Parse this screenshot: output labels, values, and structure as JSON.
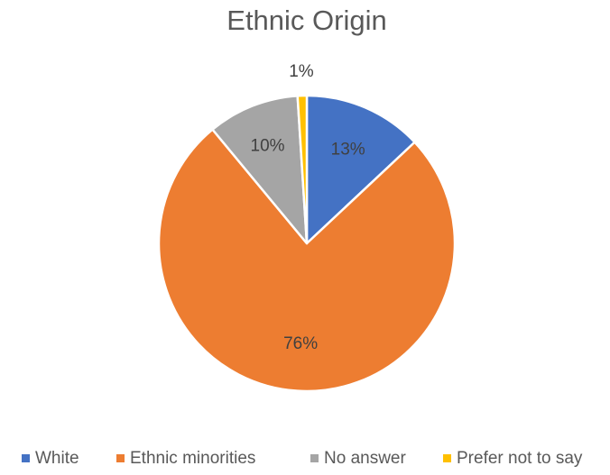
{
  "chart_data": {
    "type": "pie",
    "title": "Ethnic Origin",
    "legend_position": "bottom",
    "series": [
      {
        "values": [
          13,
          76,
          10,
          1
        ],
        "labels": [
          "13%",
          "76%",
          "10%",
          "1%"
        ]
      }
    ],
    "categories": [
      "White",
      "Ethnic minorities",
      "No answer",
      "Prefer not to say"
    ],
    "colors": [
      "#4472c4",
      "#ed7d31",
      "#a5a5a5",
      "#ffc000"
    ]
  }
}
